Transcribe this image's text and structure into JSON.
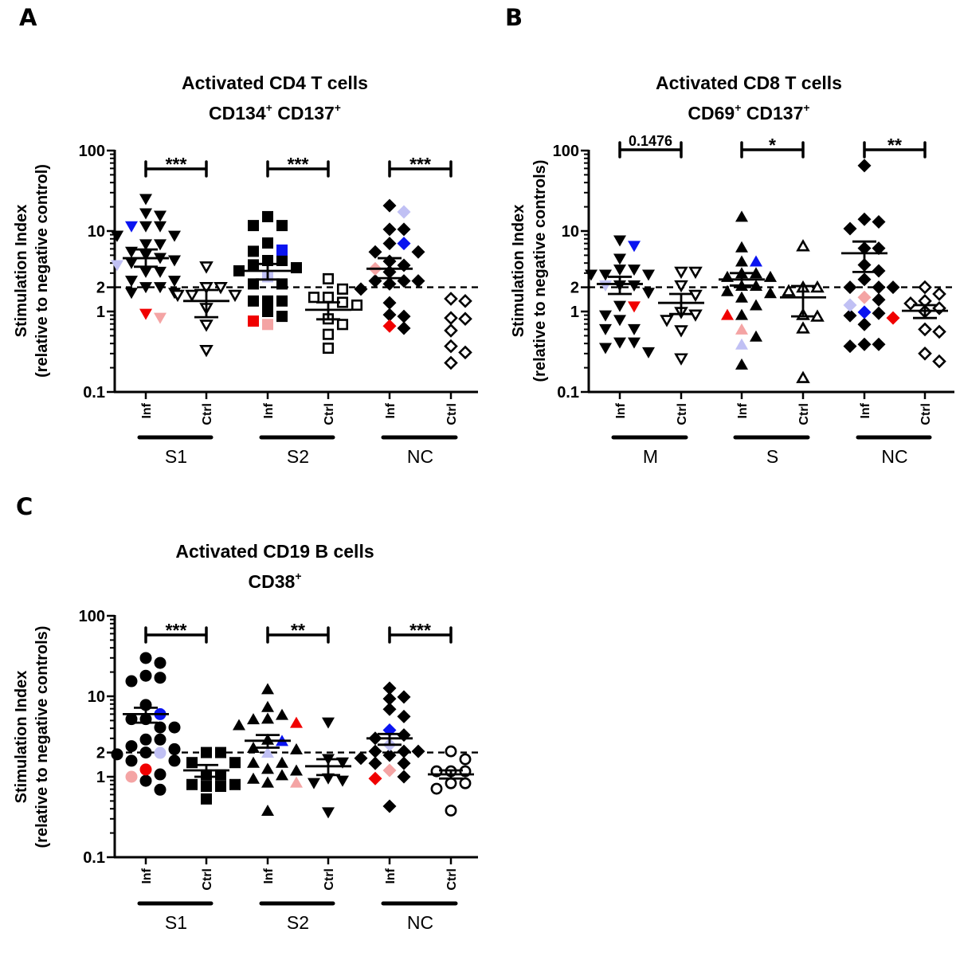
{
  "colors": {
    "black": "#000000",
    "blue": "#0a14f0",
    "lightblue": "#c0c0f4",
    "pink": "#f4a4a4",
    "red": "#f00000"
  },
  "chart_data": [
    {
      "type": "scatter",
      "panel_label": "A",
      "title_line1": "Activated CD4 T cells",
      "title_line2": [
        {
          "text": "CD134",
          "sup": "+"
        },
        {
          "text": " CD137",
          "sup": "+"
        }
      ],
      "ylabel_line1": "Stimulation Index",
      "ylabel_line2": "(relative to negative control)",
      "yscale": "log",
      "ylim": [
        0.1,
        100
      ],
      "y_ticks": [
        {
          "value": 0.1,
          "label": "0.1"
        },
        {
          "value": 1,
          "label": "1"
        },
        {
          "value": 2,
          "label": "2"
        },
        {
          "value": 10,
          "label": "10"
        },
        {
          "value": 100,
          "label": "100"
        }
      ],
      "reference_line": {
        "value": 2,
        "style": "dashed"
      },
      "groups": [
        {
          "label": "S1",
          "significance": "***",
          "conditions": [
            {
              "tick": "Inf",
              "marker": "triangle-down",
              "filled": true,
              "values": [
                24.9,
                16.5,
                15.4,
                11.4,
                11.4,
                8.7,
                8.7,
                8.7,
                6.8,
                6.8,
                5.5,
                5.0,
                4.6,
                4.3,
                4.0,
                3.1,
                3.1,
                2.4,
                2.4,
                2.0,
                2.0,
                1.7,
                1.7
              ],
              "highlights": [
                {
                  "value": 11.4,
                  "color": "blue"
                },
                {
                  "value": 3.75,
                  "color": "lightblue"
                },
                {
                  "value": 0.83,
                  "color": "pink"
                },
                {
                  "value": 0.93,
                  "color": "red"
                }
              ],
              "mean": 4.6,
              "sem": [
                3.6,
                5.9
              ]
            },
            {
              "tick": "Ctrl",
              "marker": "triangle-down",
              "filled": false,
              "values": [
                3.6,
                2.0,
                2.0,
                1.6,
                1.6,
                1.6,
                1.1,
                0.68,
                0.33
              ],
              "highlights": [],
              "mean": 1.35,
              "sem": [
                0.85,
                1.85
              ]
            }
          ]
        },
        {
          "label": "S2",
          "significance": "***",
          "conditions": [
            {
              "tick": "Inf",
              "marker": "square",
              "filled": true,
              "values": [
                15.1,
                11.7,
                11.7,
                7.1,
                5.6,
                4.3,
                4.3,
                3.8,
                3.5,
                3.2,
                2.2,
                2.2,
                1.35,
                1.35,
                1.35,
                1.0,
                0.87
              ],
              "highlights": [
                {
                  "value": 5.8,
                  "color": "blue"
                },
                {
                  "value": 2.7,
                  "color": "lightblue"
                },
                {
                  "value": 0.69,
                  "color": "pink"
                },
                {
                  "value": 0.76,
                  "color": "red"
                }
              ],
              "mean": 3.2,
              "sem": [
                2.5,
                3.9
              ]
            },
            {
              "tick": "Ctrl",
              "marker": "square",
              "filled": false,
              "values": [
                2.55,
                1.9,
                1.5,
                1.5,
                1.3,
                1.2,
                0.81,
                0.69,
                0.52,
                0.35
              ],
              "highlights": [],
              "mean": 1.05,
              "sem": [
                0.8,
                1.3
              ]
            }
          ]
        },
        {
          "label": "NC",
          "significance": "***",
          "conditions": [
            {
              "tick": "Inf",
              "marker": "diamond",
              "filled": true,
              "values": [
                20.7,
                10.5,
                10.5,
                7.0,
                5.5,
                5.5,
                4.2,
                3.75,
                3.1,
                2.4,
                2.4,
                2.4,
                2.2,
                1.9,
                1.28,
                0.91,
                0.87,
                0.62
              ],
              "highlights": [
                {
                  "value": 17.3,
                  "color": "lightblue"
                },
                {
                  "value": 7.0,
                  "color": "blue"
                },
                {
                  "value": 3.4,
                  "color": "pink"
                },
                {
                  "value": 0.66,
                  "color": "red"
                }
              ],
              "mean": 3.4,
              "sem": [
                2.6,
                4.6
              ]
            },
            {
              "tick": "Ctrl",
              "marker": "diamond",
              "filled": false,
              "values": [
                1.44,
                1.35,
                0.83,
                0.81,
                0.58,
                0.37,
                0.31,
                0.23
              ],
              "highlights": [],
              "mean": null,
              "sem": null
            }
          ]
        }
      ]
    },
    {
      "type": "scatter",
      "panel_label": "B",
      "title_line1": "Activated CD8 T cells",
      "title_line2": [
        {
          "text": "CD69",
          "sup": "+"
        },
        {
          "text": " CD137",
          "sup": "+"
        }
      ],
      "ylabel_line1": "Stimulation Index",
      "ylabel_line2": "(relative to negative controls)",
      "yscale": "log",
      "ylim": [
        0.1,
        100
      ],
      "y_ticks": [
        {
          "value": 0.1,
          "label": "0.1"
        },
        {
          "value": 1,
          "label": "1"
        },
        {
          "value": 2,
          "label": "2"
        },
        {
          "value": 10,
          "label": "10"
        },
        {
          "value": 100,
          "label": "100"
        }
      ],
      "reference_line": {
        "value": 2,
        "style": "dashed"
      },
      "groups": [
        {
          "label": "M",
          "significance": "0.1476",
          "conditions": [
            {
              "tick": "Inf",
              "marker": "triangle-down",
              "filled": true,
              "values": [
                7.6,
                4.5,
                3.3,
                3.3,
                2.85,
                2.85,
                2.85,
                2.1,
                2.1,
                1.7,
                1.17,
                0.89,
                0.78,
                0.6,
                0.6,
                0.41,
                0.41,
                0.35,
                0.31
              ],
              "highlights": [
                {
                  "value": 6.5,
                  "color": "blue"
                },
                {
                  "value": 2.1,
                  "color": "lightblue"
                },
                {
                  "value": 1.15,
                  "color": "red"
                }
              ],
              "mean": 2.2,
              "sem": [
                1.65,
                2.7
              ]
            },
            {
              "tick": "Ctrl",
              "marker": "triangle-down",
              "filled": false,
              "values": [
                3.1,
                3.1,
                2.1,
                1.6,
                0.98,
                0.91,
                0.78,
                0.58,
                0.26
              ],
              "highlights": [],
              "mean": 1.28,
              "sem": [
                0.93,
                1.65
              ]
            }
          ]
        },
        {
          "label": "S",
          "significance": "*",
          "conditions": [
            {
              "tick": "Inf",
              "marker": "triangle-up",
              "filled": true,
              "values": [
                15.1,
                6.3,
                4.2,
                3.0,
                3.0,
                2.7,
                2.7,
                2.1,
                2.1,
                1.8,
                1.7,
                1.5,
                1.2,
                0.91,
                0.49,
                0.22
              ],
              "highlights": [
                {
                  "value": 4.2,
                  "color": "blue"
                },
                {
                  "value": 0.91,
                  "color": "red"
                },
                {
                  "value": 0.6,
                  "color": "pink"
                },
                {
                  "value": 0.39,
                  "color": "lightblue"
                }
              ],
              "mean": 2.5,
              "sem": [
                2.1,
                3.0
              ]
            },
            {
              "tick": "Ctrl",
              "marker": "triangle-up",
              "filled": false,
              "values": [
                6.5,
                2.0,
                2.0,
                1.8,
                0.91,
                0.87,
                0.62,
                0.15
              ],
              "highlights": [],
              "mean": 1.5,
              "sem": [
                0.87,
                2.07
              ]
            }
          ]
        },
        {
          "label": "NC",
          "significance": "**",
          "conditions": [
            {
              "tick": "Inf",
              "marker": "diamond",
              "filled": true,
              "values": [
                65,
                14,
                13,
                10.7,
                6.1,
                6.1,
                3.8,
                3.2,
                2.5,
                2.0,
                2.0,
                2.0,
                1.4,
                0.95,
                0.89,
                0.69,
                0.39,
                0.39,
                0.37
              ],
              "highlights": [
                {
                  "value": 1.5,
                  "color": "pink"
                },
                {
                  "value": 1.2,
                  "color": "lightblue"
                },
                {
                  "value": 0.98,
                  "color": "blue"
                },
                {
                  "value": 0.83,
                  "color": "red"
                }
              ],
              "mean": 5.3,
              "sem": [
                3.1,
                7.4
              ]
            },
            {
              "tick": "Ctrl",
              "marker": "diamond",
              "filled": false,
              "values": [
                2.0,
                1.65,
                1.35,
                1.26,
                1.1,
                1.0,
                0.6,
                0.56,
                0.3,
                0.24
              ],
              "highlights": [],
              "mean": 1.02,
              "sem": [
                0.83,
                1.2
              ]
            }
          ]
        }
      ]
    },
    {
      "type": "scatter",
      "panel_label": "C",
      "title_line1": "Activated CD19 B cells",
      "title_line2": [
        {
          "text": "CD38",
          "sup": "+"
        }
      ],
      "ylabel_line1": "Stimulation Index",
      "ylabel_line2": "(relative to negative controls)",
      "yscale": "log",
      "ylim": [
        0.1,
        100
      ],
      "y_ticks": [
        {
          "value": 0.1,
          "label": "0.1"
        },
        {
          "value": 1,
          "label": "1"
        },
        {
          "value": 2,
          "label": "2"
        },
        {
          "value": 10,
          "label": "10"
        },
        {
          "value": 100,
          "label": "100"
        }
      ],
      "reference_line": {
        "value": 2,
        "style": "dashed"
      },
      "groups": [
        {
          "label": "S1",
          "significance": "***",
          "conditions": [
            {
              "tick": "Inf",
              "marker": "circle",
              "filled": true,
              "values": [
                29.9,
                26,
                18,
                17,
                15.4,
                7.8,
                5.2,
                5.2,
                4.1,
                4.1,
                2.9,
                2.9,
                2.4,
                2.2,
                2.0,
                1.9,
                1.58,
                1.58,
                1.07,
                0.89,
                0.69
              ],
              "highlights": [
                {
                  "value": 6.0,
                  "color": "blue"
                },
                {
                  "value": 1.98,
                  "color": "lightblue"
                },
                {
                  "value": 1.23,
                  "color": "red"
                },
                {
                  "value": 1.0,
                  "color": "pink"
                }
              ],
              "mean": 6.0,
              "sem": [
                4.7,
                7.2
              ]
            },
            {
              "tick": "Ctrl",
              "marker": "square",
              "filled": true,
              "values": [
                2.0,
                2.0,
                1.5,
                1.5,
                1.05,
                1.05,
                0.8,
                0.8,
                0.76,
                0.76,
                0.53
              ],
              "highlights": [],
              "mean": 1.2,
              "sem": [
                1.0,
                1.4
              ]
            }
          ]
        },
        {
          "label": "S2",
          "significance": "**",
          "conditions": [
            {
              "tick": "Inf",
              "marker": "triangle-up",
              "filled": true,
              "values": [
                12.3,
                7.4,
                5.9,
                5.3,
                5.2,
                4.4,
                2.9,
                2.3,
                2.2,
                1.5,
                1.5,
                1.26,
                1.2,
                1.05,
                0.95,
                0.85,
                0.38
              ],
              "highlights": [
                {
                  "value": 4.7,
                  "color": "red"
                },
                {
                  "value": 2.8,
                  "color": "blue"
                },
                {
                  "value": 2.0,
                  "color": "lightblue"
                },
                {
                  "value": 0.85,
                  "color": "pink"
                }
              ],
              "mean": 2.8,
              "sem": [
                2.3,
                3.3
              ]
            },
            {
              "tick": "Ctrl",
              "marker": "triangle-down",
              "filled": true,
              "values": [
                4.7,
                1.65,
                1.5,
                0.95,
                0.89,
                0.83,
                0.36
              ],
              "highlights": [],
              "mean": 1.35,
              "sem": [
                1.05,
                1.65
              ]
            }
          ]
        },
        {
          "label": "NC",
          "significance": "***",
          "conditions": [
            {
              "tick": "Inf",
              "marker": "diamond",
              "filled": true,
              "values": [
                12.6,
                9.8,
                9.3,
                6.9,
                5.6,
                3.3,
                3.0,
                2.07,
                2.07,
                2.07,
                1.85,
                1.7,
                1.47,
                1.47,
                1.0,
                0.43
              ],
              "highlights": [
                {
                  "value": 3.8,
                  "color": "blue"
                },
                {
                  "value": 2.5,
                  "color": "lightblue"
                },
                {
                  "value": 1.2,
                  "color": "pink"
                },
                {
                  "value": 0.95,
                  "color": "red"
                }
              ],
              "mean": 3.0,
              "sem": [
                2.5,
                3.4
              ]
            },
            {
              "tick": "Ctrl",
              "marker": "circle",
              "filled": false,
              "values": [
                2.07,
                1.65,
                1.17,
                1.17,
                1.17,
                0.83,
                0.83,
                0.71,
                0.38
              ],
              "highlights": [],
              "mean": 1.07,
              "sem": [
                0.95,
                1.2
              ]
            }
          ]
        }
      ]
    }
  ]
}
